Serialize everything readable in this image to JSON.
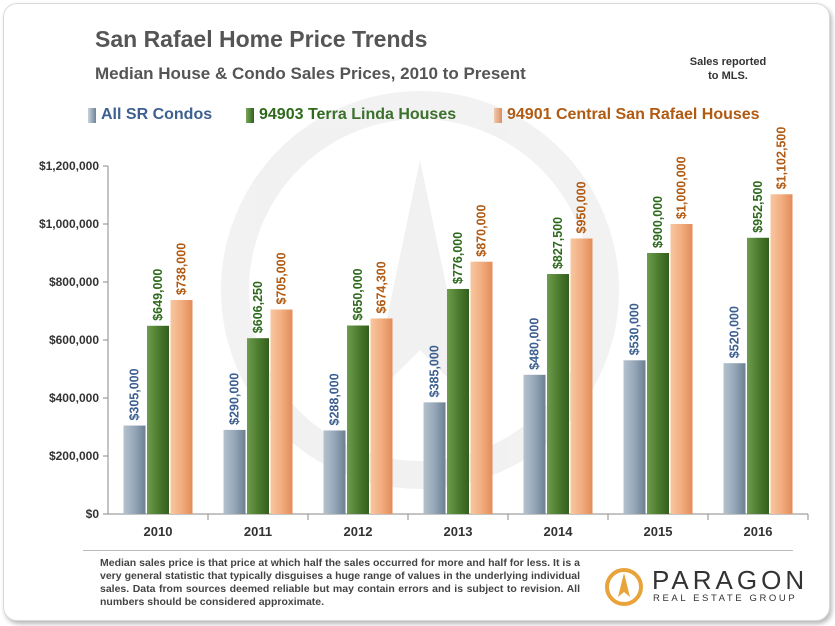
{
  "header": {
    "title": "San Rafael Home Price Trends",
    "subtitle": "Median House & Condo Sales Prices, 2010 to Present",
    "note_line1": "Sales reported",
    "note_line2": "to MLS."
  },
  "footer": {
    "disclaimer": "Median sales price is that price at which half the sales occurred for more and half for less. It is a very general statistic that typically disguises a huge range of values in the underlying individual sales. Data from sources deemed reliable but may contain errors and is subject to revision. All numbers should be considered approximate."
  },
  "logo": {
    "name": "PARAGON",
    "tagline": "REAL ESTATE GROUP"
  },
  "colors": {
    "condos": "#8496a8",
    "terra_linda": "#4a7a2e",
    "central": "#f0a878",
    "condo_label": "#3d6090",
    "terra_label": "#2e6a1c",
    "central_label": "#b05a12"
  },
  "chart_data": {
    "type": "bar",
    "categories": [
      "2010",
      "2011",
      "2012",
      "2013",
      "2014",
      "2015",
      "2016"
    ],
    "series": [
      {
        "name": "All SR Condos",
        "values": [
          305000,
          290000,
          288000,
          385000,
          480000,
          530000,
          520000
        ],
        "labels": [
          "$305,000",
          "$290,000",
          "$288,000",
          "$385,000",
          "$480,000",
          "$530,000",
          "$520,000"
        ]
      },
      {
        "name": "94903 Terra Linda Houses",
        "values": [
          649000,
          606250,
          650000,
          776000,
          827500,
          900000,
          952500
        ],
        "labels": [
          "$649,000",
          "$606,250",
          "$650,000",
          "$776,000",
          "$827,500",
          "$900,000",
          "$952,500"
        ]
      },
      {
        "name": "94901 Central San Rafael Houses",
        "values": [
          738000,
          705000,
          674300,
          870000,
          950000,
          1000000,
          1102500
        ],
        "labels": [
          "$738,000",
          "$705,000",
          "$674,300",
          "$870,000",
          "$950,000",
          "$1,000,000",
          "$1,102,500"
        ]
      }
    ],
    "ylim": [
      0,
      1200000
    ],
    "yticks": [
      0,
      200000,
      400000,
      600000,
      800000,
      1000000,
      1200000
    ],
    "ytick_labels": [
      "$0",
      "$200,000",
      "$400,000",
      "$600,000",
      "$800,000",
      "$1,000,000",
      "$1,200,000"
    ],
    "legend_position": "top",
    "grid": false
  }
}
